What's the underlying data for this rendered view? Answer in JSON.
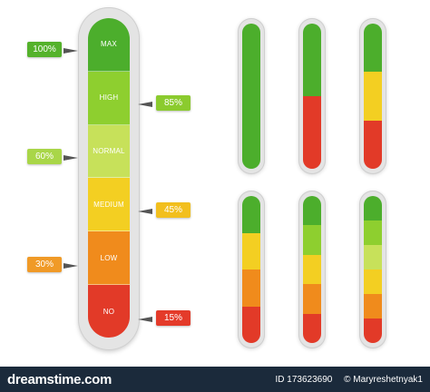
{
  "colors": {
    "max": "#4cae2c",
    "high": "#8ecf2f",
    "normal": "#c7e15a",
    "medium": "#f3cf22",
    "low": "#f08b1c",
    "no": "#e23a28",
    "callout_100": "#54b22b",
    "callout_85": "#8bcb2e",
    "callout_60": "#a9d648",
    "callout_45": "#f2bf1d",
    "callout_30": "#f09a27",
    "callout_15": "#e43b2a",
    "footer": "#1b2a3b"
  },
  "scale": {
    "levels": [
      {
        "label": "MAX"
      },
      {
        "label": "HIGH"
      },
      {
        "label": "NORMAL"
      },
      {
        "label": "MEDIUM"
      },
      {
        "label": "LOW"
      },
      {
        "label": "NO"
      }
    ]
  },
  "callouts": {
    "c100": "100%",
    "c85": "85%",
    "c60": "60%",
    "c45": "45%",
    "c30": "30%",
    "c15": "15%"
  },
  "footer": {
    "logo": "dreamstime.com",
    "id_text": "ID 173623690",
    "author": "© Maryreshetnyak1"
  }
}
